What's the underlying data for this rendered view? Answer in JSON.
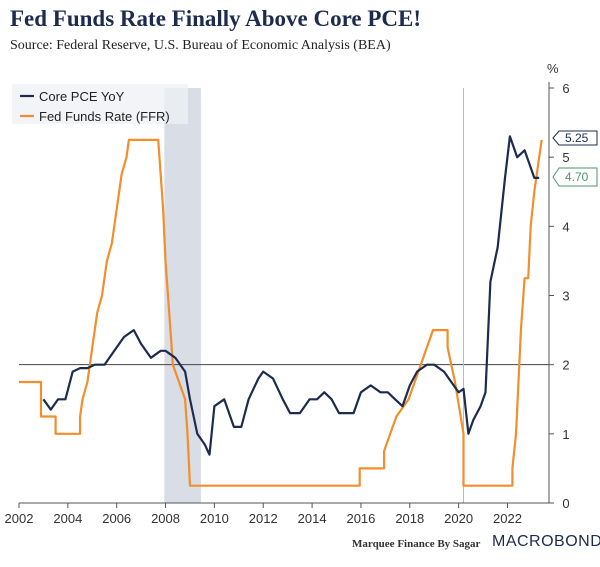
{
  "header": {
    "title": "Fed Funds Rate Finally Above Core PCE!",
    "subtitle": "Source: Federal Reserve, U.S. Bureau of Economic Analysis (BEA)"
  },
  "footer": {
    "credit": "Marquee Finance By Sagar",
    "brand": "MACROBOND"
  },
  "colors": {
    "core_pce": "#1d2b4f",
    "ffr": "#f28e2b",
    "recession_shade": "#d9dde5",
    "last_value_pce": "#4a9a6a"
  },
  "chart_data": {
    "type": "line",
    "title": "Fed Funds Rate Finally Above Core PCE!",
    "ylabel": "%",
    "xlim": [
      2002,
      2023.7
    ],
    "ylim": [
      0,
      6
    ],
    "x_ticks": [
      "2002",
      "2004",
      "2006",
      "2008",
      "2010",
      "2012",
      "2014",
      "2016",
      "2018",
      "2020",
      "2022"
    ],
    "y_ticks": [
      "0",
      "1",
      "2",
      "3",
      "4",
      "5",
      "6"
    ],
    "y_axis_label": "%",
    "reference_line_y": 2,
    "vertical_marker_x": 2020.2,
    "recession_shading": [
      2007.95,
      2009.45
    ],
    "legend": [
      "Core PCE YoY",
      "Fed Funds Rate (FFR)"
    ],
    "last_values": {
      "ffr": "5.25",
      "core_pce": "4.70"
    },
    "series": [
      {
        "name": "Core PCE YoY",
        "x": [
          2003.0,
          2003.3,
          2003.6,
          2003.9,
          2004.2,
          2004.5,
          2004.8,
          2005.1,
          2005.5,
          2005.9,
          2006.3,
          2006.7,
          2007.0,
          2007.4,
          2007.8,
          2008.0,
          2008.4,
          2008.8,
          2009.0,
          2009.3,
          2009.6,
          2009.8,
          2010.0,
          2010.4,
          2010.8,
          2011.1,
          2011.4,
          2011.8,
          2012.0,
          2012.4,
          2012.8,
          2013.1,
          2013.5,
          2013.9,
          2014.2,
          2014.5,
          2014.8,
          2015.1,
          2015.4,
          2015.7,
          2016.0,
          2016.4,
          2016.8,
          2017.1,
          2017.4,
          2017.7,
          2018.0,
          2018.3,
          2018.7,
          2019.0,
          2019.4,
          2019.8,
          2020.0,
          2020.2,
          2020.4,
          2020.6,
          2020.9,
          2021.1,
          2021.3,
          2021.6,
          2021.9,
          2022.1,
          2022.4,
          2022.7,
          2022.9,
          2023.1,
          2023.3
        ],
        "values": [
          1.5,
          1.35,
          1.5,
          1.5,
          1.9,
          1.95,
          1.95,
          2.0,
          2.0,
          2.2,
          2.4,
          2.5,
          2.3,
          2.1,
          2.2,
          2.2,
          2.1,
          1.9,
          1.5,
          1.0,
          0.85,
          0.7,
          1.4,
          1.5,
          1.1,
          1.1,
          1.5,
          1.8,
          1.9,
          1.8,
          1.5,
          1.3,
          1.3,
          1.5,
          1.5,
          1.6,
          1.5,
          1.3,
          1.3,
          1.3,
          1.6,
          1.7,
          1.6,
          1.6,
          1.5,
          1.4,
          1.7,
          1.9,
          2.0,
          2.0,
          1.9,
          1.7,
          1.6,
          1.65,
          1.0,
          1.2,
          1.4,
          1.6,
          3.2,
          3.7,
          4.7,
          5.3,
          5.0,
          5.1,
          4.9,
          4.7,
          4.7
        ]
      },
      {
        "name": "Fed Funds Rate (FFR)",
        "x": [
          2002.0,
          2002.9,
          2002.9,
          2003.5,
          2003.5,
          2004.5,
          2004.5,
          2004.6,
          2004.8,
          2005.0,
          2005.2,
          2005.4,
          2005.6,
          2005.8,
          2006.0,
          2006.2,
          2006.4,
          2006.5,
          2007.7,
          2007.8,
          2007.9,
          2008.0,
          2008.1,
          2008.3,
          2008.8,
          2008.9,
          2009.0,
          2015.95,
          2015.95,
          2016.95,
          2016.95,
          2017.2,
          2017.45,
          2017.95,
          2018.2,
          2018.45,
          2018.7,
          2018.95,
          2019.55,
          2019.55,
          2019.7,
          2019.85,
          2020.2,
          2020.2,
          2022.2,
          2022.2,
          2022.35,
          2022.45,
          2022.55,
          2022.7,
          2022.85,
          2022.95,
          2023.1,
          2023.3,
          2023.4
        ],
        "values": [
          1.75,
          1.75,
          1.25,
          1.25,
          1.0,
          1.0,
          1.25,
          1.5,
          1.75,
          2.25,
          2.75,
          3.0,
          3.5,
          3.75,
          4.25,
          4.75,
          5.0,
          5.25,
          5.25,
          4.75,
          4.25,
          3.5,
          3.0,
          2.0,
          1.5,
          1.0,
          0.25,
          0.25,
          0.5,
          0.5,
          0.75,
          1.0,
          1.25,
          1.5,
          1.75,
          2.0,
          2.25,
          2.5,
          2.5,
          2.25,
          2.0,
          1.75,
          1.0,
          0.25,
          0.25,
          0.5,
          1.0,
          1.75,
          2.5,
          3.25,
          3.25,
          4.0,
          4.5,
          5.0,
          5.25
        ]
      }
    ]
  }
}
